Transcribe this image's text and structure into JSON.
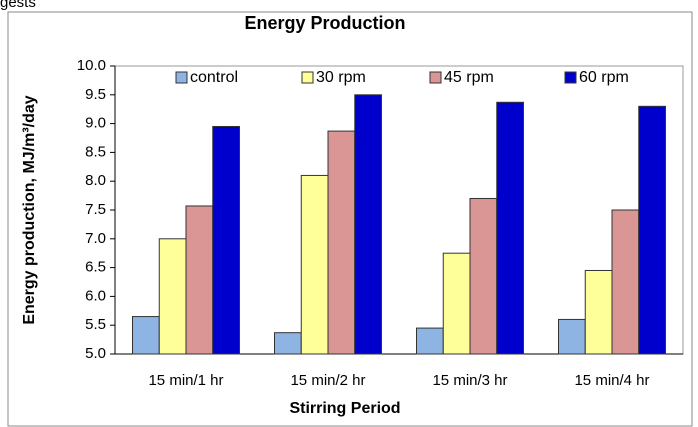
{
  "fragment_text": "gests",
  "chart_data": {
    "type": "bar",
    "title": "Energy Production",
    "x_label": "Stirring Period",
    "y_label": "Energy production, MJ/m³/day",
    "categories": [
      "15 min/1 hr",
      "15 min/2 hr",
      "15 min/3 hr",
      "15 min/4 hr"
    ],
    "series": [
      {
        "name": "control",
        "color": "#8eb4e3",
        "values": [
          5.65,
          5.37,
          5.45,
          5.6
        ]
      },
      {
        "name": "30 rpm",
        "color": "#ffff99",
        "values": [
          7.0,
          8.1,
          6.75,
          6.45
        ]
      },
      {
        "name": "45 rpm",
        "color": "#d99694",
        "values": [
          7.57,
          8.87,
          7.7,
          7.5
        ]
      },
      {
        "name": "60 rpm",
        "color": "#0000cc",
        "values": [
          8.95,
          9.5,
          9.37,
          9.3
        ]
      }
    ],
    "ylim": [
      5,
      10
    ],
    "yticks": [
      {
        "value": 5,
        "label": "5.0"
      },
      5.5,
      {
        "value": 6,
        "label": "6.0"
      },
      6.5,
      {
        "value": 7,
        "label": "7.0"
      },
      7.5,
      {
        "value": 8,
        "label": "8.0"
      },
      8.5,
      {
        "value": 9,
        "label": "9.0"
      },
      9.5,
      {
        "value": 10,
        "label": "10.0"
      }
    ],
    "legend": "top",
    "grid": false
  }
}
